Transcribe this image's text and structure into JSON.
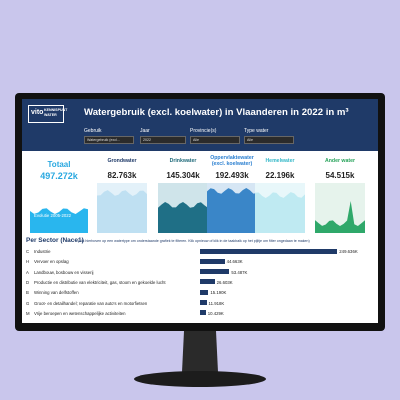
{
  "header": {
    "logo": "vito",
    "logo_sub": "KENNISPUNT WATER",
    "title": "Watergebruik (excl. koelwater) in Vlaanderen in 2022 in m³"
  },
  "filters": [
    {
      "label": "Gebruik",
      "value": "Watergebruik (excl..."
    },
    {
      "label": "Jaar",
      "value": "2022"
    },
    {
      "label": "Provincie(s)",
      "value": "Alle"
    },
    {
      "label": "Type water",
      "value": "Alle"
    }
  ],
  "kpis": [
    {
      "label": "Totaal",
      "value": "497.272k"
    },
    {
      "label": "Grondwater",
      "value": "82.763k"
    },
    {
      "label": "Drinkwater",
      "value": "145.304k"
    },
    {
      "label": "Oppervlaktewater (excl. koelwater)",
      "value": "192.493k"
    },
    {
      "label": "Hemelwater",
      "value": "22.196k"
    },
    {
      "label": "Ander water",
      "value": "54.515k"
    }
  ],
  "evolution_label": "Evolutie 2005-2022",
  "sectors": {
    "title": "Per Sector (Nace1)",
    "note": "(klik hierboven op een watertype om onderstaande grafiek te filteren. Klik opnieuw of klik in de taakbalk op het pijltje om filter ongedaan te maken)",
    "rows": [
      {
        "code": "C",
        "name": "Industrie",
        "value": 249.636,
        "value_label": "249.636K"
      },
      {
        "code": "H",
        "name": "Vervoer en opslag",
        "value": 44.663,
        "value_label": "44.663K"
      },
      {
        "code": "A",
        "name": "Landbouw, bosbouw en visserij",
        "value": 53.487,
        "value_label": "53.487K"
      },
      {
        "code": "D",
        "name": "Productie en distributie van elektriciteit, gas, stoom en gekoelde lucht",
        "value": 26.603,
        "value_label": "26.603K"
      },
      {
        "code": "B",
        "name": "Winning van delfstoffen",
        "value": 15.19,
        "value_label": "15.190K"
      },
      {
        "code": "G",
        "name": "Groot- en detailhandel; reparatie van auto's en motorfietsen",
        "value": 11.918,
        "value_label": "11.918K"
      },
      {
        "code": "M",
        "name": "Vrije beroepen en wetenschappelijke activiteiten",
        "value": 10.429,
        "value_label": "10.429K"
      }
    ]
  }
}
